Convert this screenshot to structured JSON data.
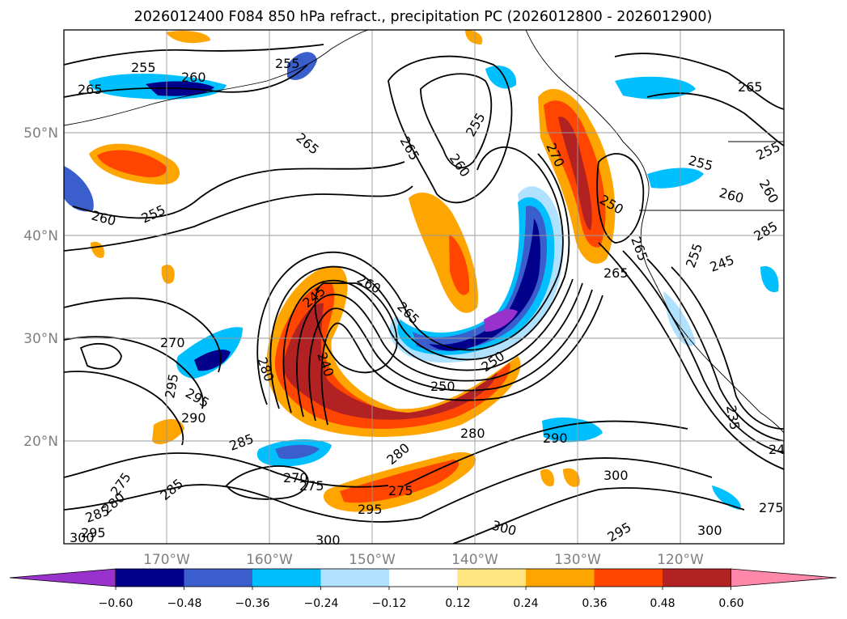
{
  "figure": {
    "title": "2026012400 F084 850 hPa refract., precipitation PC (2026012800 - 2026012900)"
  },
  "map": {
    "lat_labels": [
      "50°N",
      "40°N",
      "30°N",
      "20°N"
    ],
    "lon_labels": [
      "170°W",
      "160°W",
      "150°W",
      "140°W",
      "130°W",
      "120°W"
    ],
    "lon_range": [
      -180,
      -110
    ],
    "lat_range": [
      10,
      60
    ],
    "gridlines": true,
    "coastlines": true
  },
  "colorbar": {
    "tick_labels": [
      "−0.60",
      "−0.48",
      "−0.36",
      "−0.24",
      "−0.12",
      "0.12",
      "0.24",
      "0.36",
      "0.48",
      "0.60"
    ],
    "colors": [
      "#9932cc",
      "#00008b",
      "#3a5fcd",
      "#00bfff",
      "#b0e2ff",
      "#ffffff",
      "#ffe680",
      "#ffa500",
      "#ff4500",
      "#b22222",
      "#ff88aa"
    ],
    "extend": "both"
  },
  "contour_labels": [
    "255",
    "260",
    "265",
    "255",
    "255",
    "260",
    "265",
    "260",
    "255",
    "250",
    "270",
    "265",
    "265",
    "255",
    "260",
    "260",
    "255",
    "255",
    "245",
    "265",
    "260",
    "245",
    "265",
    "270",
    "280",
    "240",
    "250",
    "250",
    "295",
    "295",
    "290",
    "285",
    "285",
    "275",
    "280",
    "270",
    "275",
    "275",
    "280",
    "280",
    "290",
    "295",
    "300",
    "300",
    "300",
    "295",
    "300",
    "235",
    "24",
    "275",
    "285",
    "295",
    "300",
    "285",
    "265"
  ]
}
